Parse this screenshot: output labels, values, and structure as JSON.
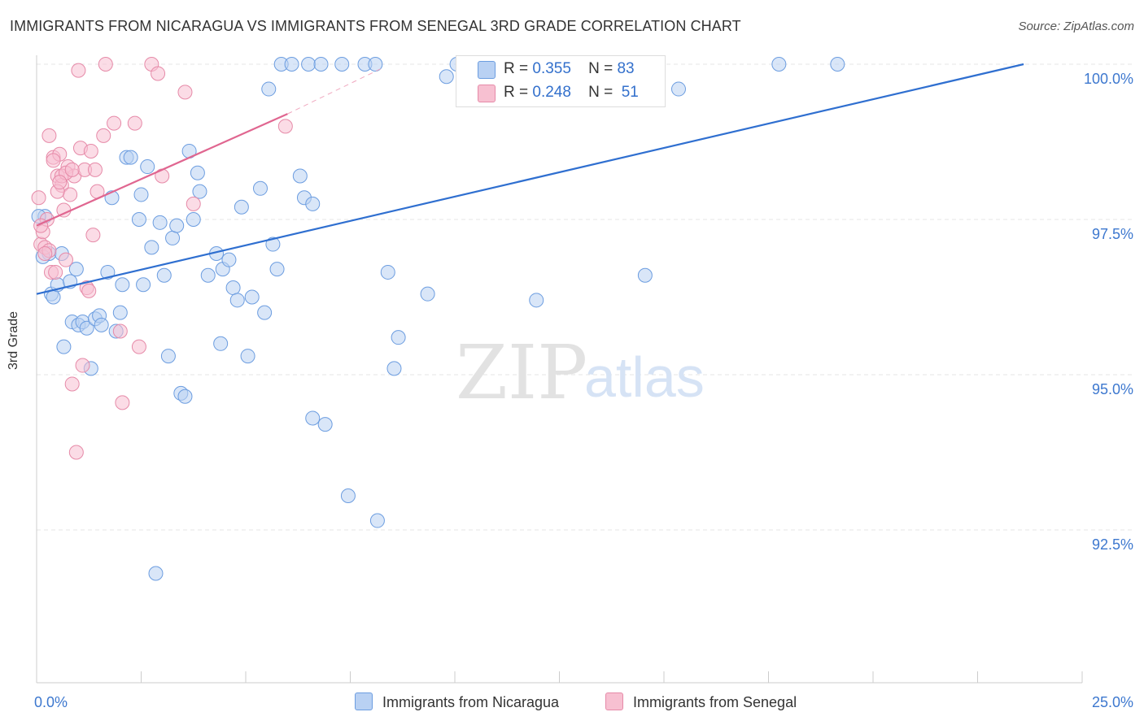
{
  "title": "IMMIGRANTS FROM NICARAGUA VS IMMIGRANTS FROM SENEGAL 3RD GRADE CORRELATION CHART",
  "source": "Source: ZipAtlas.com",
  "watermark": {
    "zip": "ZIP",
    "atlas": "atlas"
  },
  "legend": {
    "r_label": "R =",
    "n_label": "N =",
    "series": [
      {
        "r": "0.355",
        "n": "83",
        "fill": "#b9d1f3",
        "stroke": "#6c9de0"
      },
      {
        "r": "0.248",
        "n": "51",
        "fill": "#f7c0d1",
        "stroke": "#e68aa8"
      }
    ]
  },
  "bottom_legend": {
    "nicaragua": "Immigrants from Nicaragua",
    "senegal": "Immigrants from Senegal"
  },
  "chart_data": {
    "type": "scatter",
    "title": "IMMIGRANTS FROM NICARAGUA VS IMMIGRANTS FROM SENEGAL 3RD GRADE CORRELATION CHART",
    "xlabel": "",
    "ylabel": "3rd Grade",
    "xlim": [
      0,
      25
    ],
    "ylim": [
      90.0,
      100.4
    ],
    "x_tick_labels": [
      "0.0%",
      "25.0%"
    ],
    "y_ticks": [
      92.5,
      95.0,
      97.5,
      100.0
    ],
    "y_tick_labels": [
      "92.5%",
      "95.0%",
      "97.5%",
      "100.0%"
    ],
    "grid": true,
    "legend_position": "top-center",
    "series": [
      {
        "name": "Immigrants from Nicaragua",
        "color": "#6c9de0",
        "fill": "#b9d1f3",
        "trend": {
          "x": [
            0.0,
            23.6
          ],
          "y": [
            96.3,
            100.0
          ],
          "color": "#2f6fd0"
        },
        "points": [
          [
            0.2,
            97.55
          ],
          [
            0.3,
            96.95
          ],
          [
            0.35,
            96.3
          ],
          [
            0.4,
            96.25
          ],
          [
            0.5,
            96.45
          ],
          [
            0.6,
            96.95
          ],
          [
            0.65,
            95.45
          ],
          [
            0.8,
            96.5
          ],
          [
            0.85,
            95.85
          ],
          [
            0.95,
            96.7
          ],
          [
            1.0,
            95.8
          ],
          [
            1.1,
            95.85
          ],
          [
            1.2,
            95.75
          ],
          [
            1.3,
            95.1
          ],
          [
            1.4,
            95.9
          ],
          [
            1.5,
            95.95
          ],
          [
            1.55,
            95.8
          ],
          [
            1.7,
            96.65
          ],
          [
            1.8,
            97.85
          ],
          [
            1.9,
            95.7
          ],
          [
            2.0,
            96.0
          ],
          [
            2.05,
            96.45
          ],
          [
            2.15,
            98.5
          ],
          [
            2.25,
            98.5
          ],
          [
            2.45,
            97.5
          ],
          [
            2.5,
            97.9
          ],
          [
            2.55,
            96.45
          ],
          [
            2.65,
            98.35
          ],
          [
            2.75,
            97.05
          ],
          [
            2.85,
            91.8
          ],
          [
            2.95,
            97.45
          ],
          [
            3.05,
            96.6
          ],
          [
            3.15,
            95.3
          ],
          [
            3.25,
            97.2
          ],
          [
            3.35,
            97.4
          ],
          [
            3.45,
            94.7
          ],
          [
            3.55,
            94.65
          ],
          [
            3.65,
            98.6
          ],
          [
            3.75,
            97.5
          ],
          [
            3.85,
            98.25
          ],
          [
            3.9,
            97.95
          ],
          [
            4.1,
            96.6
          ],
          [
            4.3,
            96.95
          ],
          [
            4.4,
            95.5
          ],
          [
            4.45,
            96.7
          ],
          [
            4.6,
            96.85
          ],
          [
            4.7,
            96.4
          ],
          [
            4.8,
            96.2
          ],
          [
            4.9,
            97.7
          ],
          [
            5.05,
            95.3
          ],
          [
            5.15,
            96.25
          ],
          [
            5.35,
            98.0
          ],
          [
            5.45,
            96.0
          ],
          [
            5.55,
            99.6
          ],
          [
            5.65,
            97.1
          ],
          [
            5.75,
            96.7
          ],
          [
            5.85,
            100.0
          ],
          [
            6.1,
            100.0
          ],
          [
            6.3,
            98.2
          ],
          [
            6.4,
            97.85
          ],
          [
            6.5,
            100.0
          ],
          [
            6.6,
            97.75
          ],
          [
            6.6,
            94.3
          ],
          [
            6.8,
            100.0
          ],
          [
            6.9,
            94.2
          ],
          [
            7.3,
            100.0
          ],
          [
            7.45,
            93.05
          ],
          [
            7.85,
            100.0
          ],
          [
            8.1,
            100.0
          ],
          [
            8.15,
            92.65
          ],
          [
            8.4,
            96.65
          ],
          [
            8.55,
            95.1
          ],
          [
            8.65,
            95.6
          ],
          [
            9.35,
            96.3
          ],
          [
            9.8,
            99.8
          ],
          [
            10.05,
            100.0
          ],
          [
            11.95,
            96.2
          ],
          [
            14.55,
            96.6
          ],
          [
            15.35,
            99.6
          ],
          [
            17.75,
            100.0
          ],
          [
            19.15,
            100.0
          ],
          [
            0.05,
            97.55
          ],
          [
            0.15,
            96.9
          ]
        ]
      },
      {
        "name": "Immigrants from Senegal",
        "color": "#e68aa8",
        "fill": "#f7c0d1",
        "trend": {
          "x": [
            0.0,
            6.0
          ],
          "y": [
            97.4,
            99.2
          ],
          "color": "#e06690"
        },
        "trend_dashed": {
          "x": [
            6.0,
            8.3
          ],
          "y": [
            99.2,
            99.95
          ]
        },
        "points": [
          [
            0.05,
            97.85
          ],
          [
            0.1,
            97.1
          ],
          [
            0.15,
            97.3
          ],
          [
            0.2,
            97.05
          ],
          [
            0.25,
            97.5
          ],
          [
            0.3,
            97.0
          ],
          [
            0.35,
            96.65
          ],
          [
            0.4,
            98.5
          ],
          [
            0.45,
            96.65
          ],
          [
            0.5,
            98.2
          ],
          [
            0.55,
            98.55
          ],
          [
            0.6,
            98.05
          ],
          [
            0.65,
            97.65
          ],
          [
            0.7,
            96.85
          ],
          [
            0.75,
            98.35
          ],
          [
            0.8,
            97.9
          ],
          [
            0.85,
            94.85
          ],
          [
            0.9,
            98.2
          ],
          [
            0.95,
            93.75
          ],
          [
            1.0,
            99.9
          ],
          [
            1.05,
            98.65
          ],
          [
            1.1,
            95.15
          ],
          [
            1.15,
            98.3
          ],
          [
            1.2,
            96.4
          ],
          [
            1.25,
            96.35
          ],
          [
            1.3,
            98.6
          ],
          [
            1.35,
            97.25
          ],
          [
            1.4,
            98.3
          ],
          [
            1.45,
            97.95
          ],
          [
            1.6,
            98.85
          ],
          [
            1.65,
            100.0
          ],
          [
            1.85,
            99.05
          ],
          [
            2.0,
            95.7
          ],
          [
            2.05,
            94.55
          ],
          [
            2.35,
            99.05
          ],
          [
            2.45,
            95.45
          ],
          [
            2.75,
            100.0
          ],
          [
            2.9,
            99.85
          ],
          [
            3.0,
            98.2
          ],
          [
            3.55,
            99.55
          ],
          [
            3.75,
            97.75
          ],
          [
            5.95,
            99.0
          ],
          [
            0.1,
            97.4
          ],
          [
            0.3,
            98.85
          ],
          [
            0.5,
            97.95
          ],
          [
            0.6,
            98.2
          ],
          [
            0.7,
            98.25
          ],
          [
            0.4,
            98.45
          ],
          [
            0.2,
            96.95
          ],
          [
            0.85,
            98.3
          ],
          [
            0.55,
            98.1
          ]
        ]
      }
    ]
  }
}
